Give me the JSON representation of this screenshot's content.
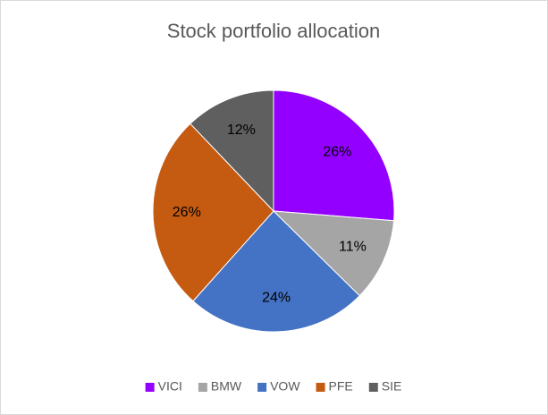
{
  "chart_data": {
    "type": "pie",
    "title": "Stock portfolio allocation",
    "categories": [
      "VICI",
      "BMW",
      "VOW",
      "PFE",
      "SIE"
    ],
    "values": [
      26,
      11,
      24,
      26,
      12
    ],
    "value_labels": [
      "26%",
      "11%",
      "24%",
      "26%",
      "12%"
    ],
    "colors": [
      "#9400ff",
      "#a5a5a5",
      "#4472c4",
      "#c55a11",
      "#5f5f5f"
    ],
    "legend": "bottom"
  }
}
